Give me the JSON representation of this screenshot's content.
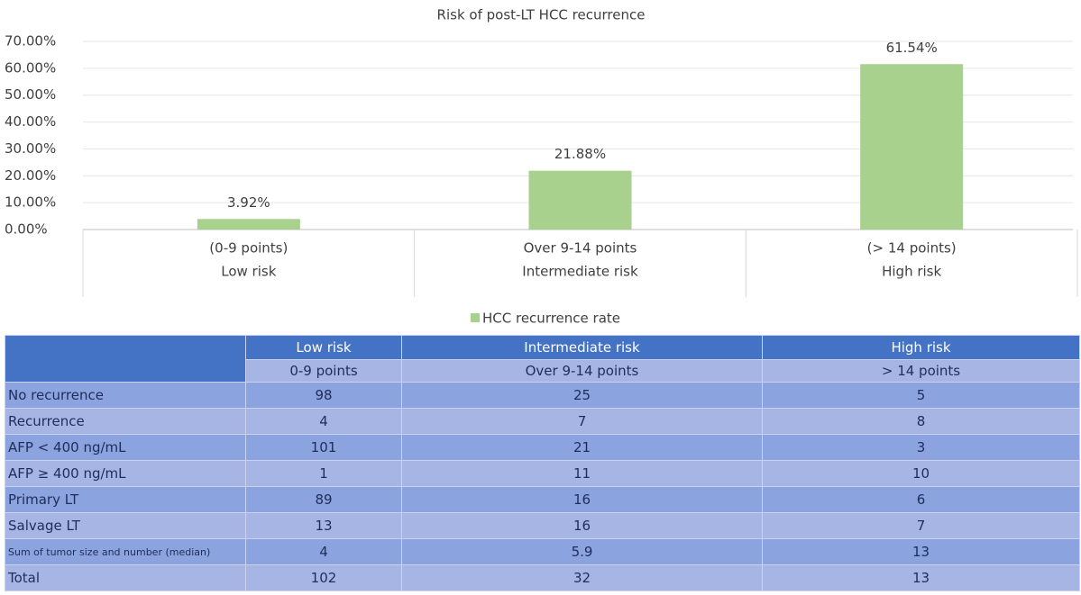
{
  "chart_data": {
    "type": "bar",
    "title": "Risk of post-LT HCC recurrence",
    "categories": [
      [
        "(0-9 points)",
        "Low risk"
      ],
      [
        "Over 9-14 points",
        "Intermediate risk"
      ],
      [
        "(> 14 points)",
        "High risk"
      ]
    ],
    "series": [
      {
        "name": "HCC recurrence rate",
        "color": "#a9d18e",
        "values": [
          3.92,
          21.88,
          61.54
        ],
        "value_labels": [
          "3.92%",
          "21.88%",
          "61.54%"
        ]
      }
    ],
    "ylim": [
      0,
      70
    ],
    "yticks": [
      {
        "value": 0,
        "label": "0.00%"
      },
      {
        "value": 10,
        "label": "10.00%"
      },
      {
        "value": 20,
        "label": "20.00%"
      },
      {
        "value": 30,
        "label": "30.00%"
      },
      {
        "value": 40,
        "label": "40.00%"
      },
      {
        "value": 50,
        "label": "50.00%"
      },
      {
        "value": 60,
        "label": "60.00%"
      },
      {
        "value": 70,
        "label": "70.00%"
      }
    ],
    "grid": true,
    "legend": "bottom"
  },
  "table": {
    "header": [
      [
        "Low risk",
        "Intermediate risk",
        "High risk"
      ],
      [
        "0-9 points",
        "Over 9-14 points",
        "> 14 points"
      ]
    ],
    "rows": [
      [
        "No recurrence",
        98,
        25,
        5
      ],
      [
        "Recurrence",
        4,
        7,
        8
      ],
      [
        "AFP < 400 ng/mL",
        101,
        21,
        3
      ],
      [
        "AFP ≥ 400 ng/mL",
        1,
        11,
        10
      ],
      [
        "Primary LT",
        89,
        16,
        6
      ],
      [
        "Salvage LT",
        13,
        16,
        7
      ],
      [
        "Sum of tumor size and number (median)",
        4,
        5.9,
        13
      ],
      [
        "Total",
        102,
        32,
        13
      ]
    ]
  }
}
